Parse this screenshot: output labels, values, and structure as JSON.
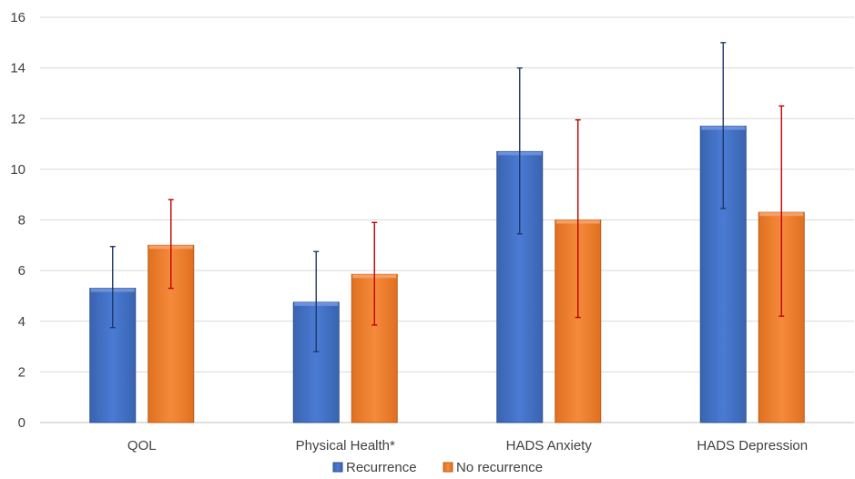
{
  "chart_data": {
    "type": "bar",
    "categories": [
      "QOL",
      "Physical Health*",
      "HADS Anxiety",
      "HADS Depression"
    ],
    "series": [
      {
        "name": "Recurrence",
        "values": [
          5.3,
          4.75,
          10.7,
          11.7
        ],
        "error_low": [
          3.75,
          2.8,
          7.45,
          8.45
        ],
        "error_high": [
          6.95,
          6.75,
          14.0,
          15.0
        ],
        "color": "#4472c4",
        "error_color": "#1f3864"
      },
      {
        "name": "No recurrence",
        "values": [
          7.0,
          5.85,
          8.0,
          8.3
        ],
        "error_low": [
          5.3,
          3.85,
          4.15,
          4.2
        ],
        "error_high": [
          8.8,
          7.9,
          11.95,
          12.5
        ],
        "color": "#ed7d31",
        "error_color": "#c00000"
      }
    ],
    "y_ticks": [
      "0",
      "2",
      "4",
      "6",
      "8",
      "10",
      "12",
      "14",
      "16"
    ],
    "ylim": [
      0,
      16
    ],
    "grid": true,
    "legend_position": "bottom",
    "title": "",
    "xlabel": "",
    "ylabel": ""
  }
}
